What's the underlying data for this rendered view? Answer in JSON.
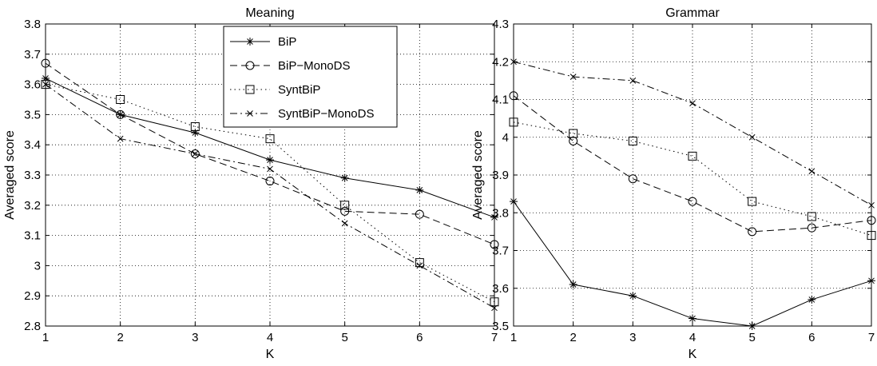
{
  "chart_data": [
    {
      "type": "line",
      "title": "Meaning",
      "xlabel": "K",
      "ylabel": "Averaged score",
      "xlim": [
        1,
        7
      ],
      "ylim": [
        2.8,
        3.8
      ],
      "x_ticks": [
        1,
        2,
        3,
        4,
        5,
        6,
        7
      ],
      "x_tick_labels": [
        "1",
        "2",
        "3",
        "4",
        "5",
        "6",
        "7"
      ],
      "y_ticks": [
        2.8,
        2.9,
        3.0,
        3.1,
        3.2,
        3.3,
        3.4,
        3.5,
        3.6,
        3.7,
        3.8
      ],
      "y_tick_labels": [
        "2.8",
        "2.9",
        "3",
        "3.1",
        "3.2",
        "3.3",
        "3.4",
        "3.5",
        "3.6",
        "3.7",
        "3.8"
      ],
      "grid": true,
      "legend_position": "top-right",
      "x": [
        1,
        2,
        3,
        4,
        5,
        6,
        7
      ],
      "series": [
        {
          "name": "BiP",
          "marker": "star",
          "dash": "solid",
          "values": [
            3.62,
            3.5,
            3.44,
            3.35,
            3.29,
            3.25,
            3.16
          ]
        },
        {
          "name": "BiP−MonoDS",
          "marker": "circle",
          "dash": "dashed",
          "values": [
            3.67,
            3.5,
            3.37,
            3.28,
            3.18,
            3.17,
            3.07
          ]
        },
        {
          "name": "SyntBiP",
          "marker": "square",
          "dash": "dotted",
          "values": [
            3.6,
            3.55,
            3.46,
            3.42,
            3.2,
            3.01,
            2.88
          ]
        },
        {
          "name": "SyntBiP−MonoDS",
          "marker": "x",
          "dash": "dashdot",
          "values": [
            3.6,
            3.42,
            3.37,
            3.32,
            3.14,
            3.0,
            2.86
          ]
        }
      ]
    },
    {
      "type": "line",
      "title": "Grammar",
      "xlabel": "K",
      "ylabel": "Averaged score",
      "xlim": [
        1,
        7
      ],
      "ylim": [
        3.5,
        4.3
      ],
      "x_ticks": [
        1,
        2,
        3,
        4,
        5,
        6,
        7
      ],
      "x_tick_labels": [
        "1",
        "2",
        "3",
        "4",
        "5",
        "6",
        "7"
      ],
      "y_ticks": [
        3.5,
        3.6,
        3.7,
        3.8,
        3.9,
        4.0,
        4.1,
        4.2,
        4.3
      ],
      "y_tick_labels": [
        "3.5",
        "3.6",
        "3.7",
        "3.8",
        "3.9",
        "4",
        "4.1",
        "4.2",
        "4.3"
      ],
      "grid": true,
      "x": [
        1,
        2,
        3,
        4,
        5,
        6,
        7
      ],
      "series": [
        {
          "name": "BiP",
          "marker": "star",
          "dash": "solid",
          "values": [
            3.83,
            3.61,
            3.58,
            3.52,
            3.5,
            3.57,
            3.62
          ]
        },
        {
          "name": "BiP−MonoDS",
          "marker": "circle",
          "dash": "dashed",
          "values": [
            4.11,
            3.99,
            3.89,
            3.83,
            3.75,
            3.76,
            3.78
          ]
        },
        {
          "name": "SyntBiP",
          "marker": "square",
          "dash": "dotted",
          "values": [
            4.04,
            4.01,
            3.99,
            3.95,
            3.83,
            3.79,
            3.74
          ]
        },
        {
          "name": "SyntBiP−MonoDS",
          "marker": "x",
          "dash": "dashdot",
          "values": [
            4.2,
            4.16,
            4.15,
            4.09,
            4.0,
            3.91,
            3.82
          ]
        }
      ]
    }
  ]
}
